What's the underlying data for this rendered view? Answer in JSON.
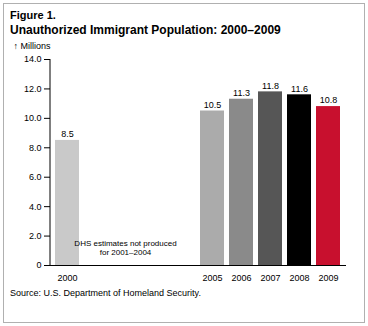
{
  "chart_data": {
    "type": "bar",
    "figure": "Figure 1.",
    "title": "Unauthorized Immigrant Population: 2000–2009",
    "y_label": "Millions",
    "source": "Source: U.S. Department of Homeland Security.",
    "annotation": "DHS estimates not produced\nfor 2001–2004",
    "categories": [
      "2000",
      null,
      null,
      null,
      null,
      "2005",
      "2006",
      "2007",
      "2008",
      "2009"
    ],
    "values": [
      8.5,
      null,
      null,
      null,
      null,
      10.5,
      11.3,
      11.8,
      11.6,
      10.8
    ],
    "colors": [
      "#c9c9c9",
      null,
      null,
      null,
      null,
      "#ababab",
      "#8a8a8a",
      "#565656",
      "#000000",
      "#c8102e"
    ],
    "ylim": [
      0,
      14
    ],
    "yticks": [
      0,
      {
        "value": 2,
        "label": "2.0"
      },
      {
        "value": 4,
        "label": "4.0"
      },
      {
        "value": 6,
        "label": "6.0"
      },
      {
        "value": 8,
        "label": "8.0"
      },
      {
        "value": 10,
        "label": "10.0"
      },
      {
        "value": 12,
        "label": "12.0"
      },
      {
        "value": 14,
        "label": "14.0"
      }
    ],
    "data_labels": true,
    "grid": false
  }
}
